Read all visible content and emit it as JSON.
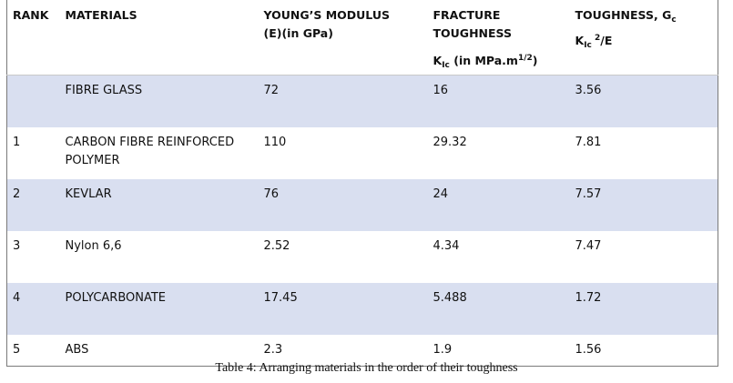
{
  "table": {
    "headers": {
      "rank": "RANK",
      "materials": "MATERIALS",
      "youngs_line1": "YOUNG’S MODULUS",
      "youngs_line2": "(E)(in GPa)",
      "fracture_line1": "FRACTURE",
      "fracture_line2": "TOUGHNESS",
      "fracture_unit_k": "K",
      "fracture_unit_sub": "Ic",
      "fracture_unit_text": " (in MPa.m",
      "fracture_unit_sup": "1/2",
      "fracture_unit_close": ")",
      "toughness_line1": "TOUGHNESS, G",
      "toughness_line1_sub": "c",
      "toughness_k": "K",
      "toughness_k_sub": "Ic",
      "toughness_sup": " 2",
      "toughness_tail": "/E"
    },
    "rows": [
      {
        "rank": "",
        "material": "FIBRE GLASS",
        "youngs_modulus": "72",
        "fracture_toughness": "16",
        "toughness": "3.56"
      },
      {
        "rank": "1",
        "material": "CARBON FIBRE REINFORCED POLYMER",
        "youngs_modulus": "110",
        "fracture_toughness": "29.32",
        "toughness": "7.81"
      },
      {
        "rank": "2",
        "material": "KEVLAR",
        "youngs_modulus": "76",
        "fracture_toughness": "24",
        "toughness": "7.57"
      },
      {
        "rank": "3",
        "material": "Nylon 6,6",
        "youngs_modulus": "2.52",
        "fracture_toughness": "4.34",
        "toughness": "7.47"
      },
      {
        "rank": "4",
        "material": "POLYCARBONATE",
        "youngs_modulus": "17.45",
        "fracture_toughness": "5.488",
        "toughness": "1.72"
      },
      {
        "rank": "5",
        "material": "ABS",
        "youngs_modulus": "2.3",
        "fracture_toughness": "1.9",
        "toughness": "1.56"
      }
    ]
  },
  "caption": "Table 4: Arranging materials in the order of their toughness",
  "colors": {
    "row_stripe": "#d9dff0",
    "border": "#7a7a7a"
  }
}
